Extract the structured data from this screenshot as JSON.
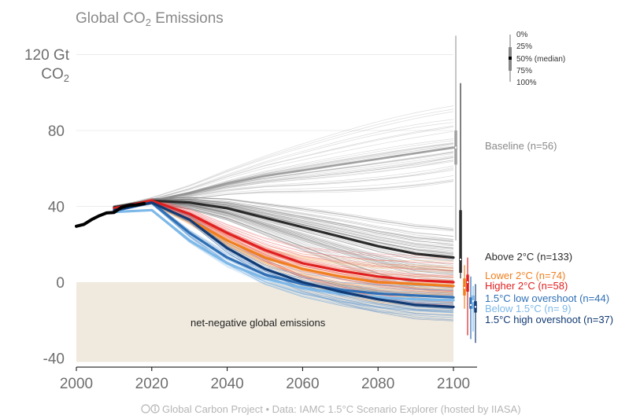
{
  "chart_data": {
    "type": "line",
    "title": "Global CO",
    "title_sub": "2",
    "title_rest": " Emissions",
    "ylabel_top": "120 Gt",
    "ylabel_unit": "CO",
    "ylabel_unit_sub": "2",
    "xlim": [
      2000,
      2107
    ],
    "ylim": [
      -42,
      130
    ],
    "x_ticks": [
      "2000",
      "2020",
      "2040",
      "2060",
      "2080",
      "2100"
    ],
    "y_ticks": [
      "80",
      "40",
      "0",
      "-40"
    ],
    "grid": true,
    "historical": {
      "x": [
        2000,
        2002,
        2004,
        2006,
        2008,
        2010,
        2012,
        2014,
        2016,
        2018
      ],
      "y": [
        29.5,
        30.5,
        33,
        35,
        36.5,
        36.8,
        39.5,
        40.5,
        40.8,
        41.5
      ]
    },
    "series": [
      {
        "name": "Baseline (n=56)",
        "color": "#8a8a8a",
        "x": [
          2010,
          2020,
          2030,
          2040,
          2050,
          2060,
          2070,
          2080,
          2090,
          2100
        ],
        "y": [
          40,
          43,
          47,
          52,
          56,
          59,
          62,
          65,
          68,
          71
        ],
        "box": {
          "min": 22,
          "q1": 62,
          "median": 71,
          "q3": 80,
          "max": 130
        }
      },
      {
        "name": "Above 2°C (n=133)",
        "color": "#2b2b2b",
        "x": [
          2010,
          2020,
          2030,
          2040,
          2050,
          2060,
          2070,
          2080,
          2090,
          2100
        ],
        "y": [
          39.5,
          43,
          42,
          39,
          34,
          29,
          24,
          19,
          15,
          13
        ],
        "box": {
          "min": 2,
          "q1": 5,
          "median": 12,
          "q3": 38,
          "max": 105
        }
      },
      {
        "name": "Lower 2°C (n=74)",
        "color": "#f07f1f",
        "x": [
          2010,
          2020,
          2030,
          2040,
          2050,
          2060,
          2070,
          2080,
          2090,
          2100
        ],
        "y": [
          38,
          42,
          33,
          22,
          13,
          7,
          3,
          0,
          -1,
          -2
        ],
        "box": {
          "min": -14,
          "q1": -7,
          "median": -3,
          "q3": 2,
          "max": 9
        }
      },
      {
        "name": "Higher 2°C (n=58)",
        "color": "#e02020",
        "x": [
          2010,
          2020,
          2030,
          2040,
          2050,
          2060,
          2070,
          2080,
          2090,
          2100
        ],
        "y": [
          39,
          43,
          36,
          26,
          17,
          10,
          6,
          3,
          1,
          0
        ],
        "box": {
          "min": -28,
          "q1": -5,
          "median": 0,
          "q3": 4,
          "max": 13
        }
      },
      {
        "name": "1.5°C low overshoot (n=44)",
        "color": "#2f6fb5",
        "x": [
          2010,
          2020,
          2030,
          2040,
          2050,
          2060,
          2070,
          2080,
          2090,
          2100
        ],
        "y": [
          37.5,
          42,
          26,
          13,
          4,
          -1,
          -4,
          -6,
          -7,
          -8
        ],
        "box": {
          "min": -30,
          "q1": -14,
          "median": -12,
          "q3": -8,
          "max": 3
        }
      },
      {
        "name": "Below 1.5°C (n= 9)",
        "color": "#7db8e8",
        "x": [
          2010,
          2020,
          2030,
          2040,
          2050,
          2060,
          2070,
          2080,
          2090,
          2100
        ],
        "y": [
          37,
          38,
          22,
          10,
          2,
          -3,
          -6,
          -8,
          -9,
          -9.5
        ],
        "box": {
          "min": -26,
          "q1": -14,
          "median": -10,
          "q3": -7,
          "max": -2
        }
      },
      {
        "name": "1.5°C high overshoot (n=37)",
        "color": "#123a73",
        "x": [
          2010,
          2020,
          2030,
          2040,
          2050,
          2060,
          2070,
          2080,
          2090,
          2100
        ],
        "y": [
          38,
          42,
          33,
          18,
          7,
          0,
          -5,
          -9,
          -12,
          -13
        ],
        "box": {
          "min": -32,
          "q1": -16,
          "median": -13,
          "q3": -10,
          "max": -1
        }
      }
    ],
    "box_legend": [
      "0%",
      "25%",
      "50% (median)",
      "75%",
      "100%"
    ],
    "annotation": "net-negative global emissions",
    "credit": "Global Carbon Project  •  Data: IAMC 1.5°C Scenario Explorer (hosted by IIASA)",
    "credit_icon": "cc-by-icon"
  }
}
